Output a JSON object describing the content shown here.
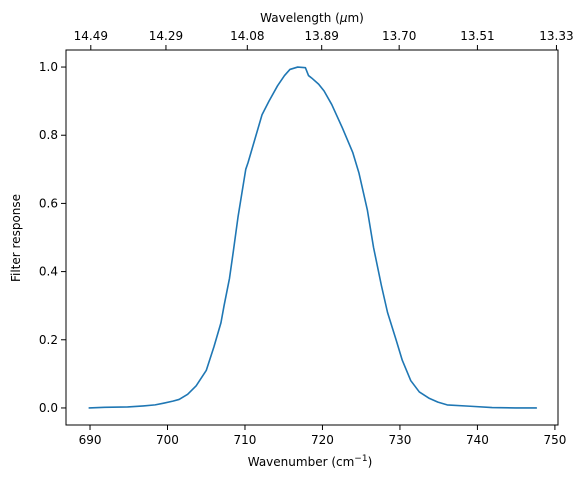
{
  "chart_data": {
    "type": "line",
    "title": "",
    "xlabel": "Wavenumber (cm",
    "xlabel_sup": "−1",
    "xlabel_suffix": ")",
    "ylabel": "Filter response",
    "x2label": "Wavelength (",
    "x2label_mu": "μ",
    "x2label_suffix": "m)",
    "xlim": [
      686.9,
      750.4
    ],
    "ylim": [
      -0.05,
      1.05
    ],
    "grid": false,
    "legend": "none",
    "x_ticks": [
      690,
      700,
      710,
      720,
      730,
      740,
      750
    ],
    "x_tick_labels": [
      "690",
      "700",
      "710",
      "720",
      "730",
      "740",
      "750"
    ],
    "y_ticks": [
      0.0,
      0.2,
      0.4,
      0.6,
      0.8,
      1.0
    ],
    "y_tick_labels": [
      "0.0",
      "0.2",
      "0.4",
      "0.6",
      "0.8",
      "1.0"
    ],
    "x2_ticks": [
      690.1,
      699.8,
      710.3,
      719.9,
      729.9,
      740.0,
      750.2
    ],
    "x2_tick_labels": [
      "14.49",
      "14.29",
      "14.08",
      "13.89",
      "13.70",
      "13.51",
      "13.33"
    ],
    "series": [
      {
        "color": "#1f77b4",
        "x": [
          689.9,
          691.9,
          694.9,
          696.9,
          698.4,
          699.5,
          700.7,
          701.5,
          702.6,
          703.7,
          705.0,
          706.0,
          706.9,
          707.3,
          708.0,
          708.5,
          709.1,
          709.6,
          710.1,
          710.4,
          711.3,
          712.2,
          713.1,
          714.2,
          715.1,
          715.8,
          716.8,
          717.8,
          718.2,
          718.6,
          719.5,
          720.2,
          721.2,
          722.6,
          723.9,
          724.7,
          725.8,
          726.6,
          727.6,
          728.4,
          729.5,
          730.3,
          731.4,
          732.5,
          733.8,
          734.9,
          736.1,
          739.1,
          741.9,
          744.9,
          747.6
        ],
        "y": [
          0.0,
          0.002,
          0.003,
          0.006,
          0.009,
          0.014,
          0.02,
          0.025,
          0.04,
          0.065,
          0.11,
          0.18,
          0.25,
          0.3,
          0.38,
          0.46,
          0.56,
          0.63,
          0.7,
          0.72,
          0.79,
          0.86,
          0.9,
          0.945,
          0.975,
          0.993,
          1.0,
          0.998,
          0.975,
          0.968,
          0.95,
          0.93,
          0.89,
          0.82,
          0.75,
          0.69,
          0.58,
          0.47,
          0.36,
          0.28,
          0.2,
          0.14,
          0.08,
          0.047,
          0.028,
          0.017,
          0.009,
          0.005,
          0.001,
          0.0,
          0.0
        ]
      }
    ]
  }
}
